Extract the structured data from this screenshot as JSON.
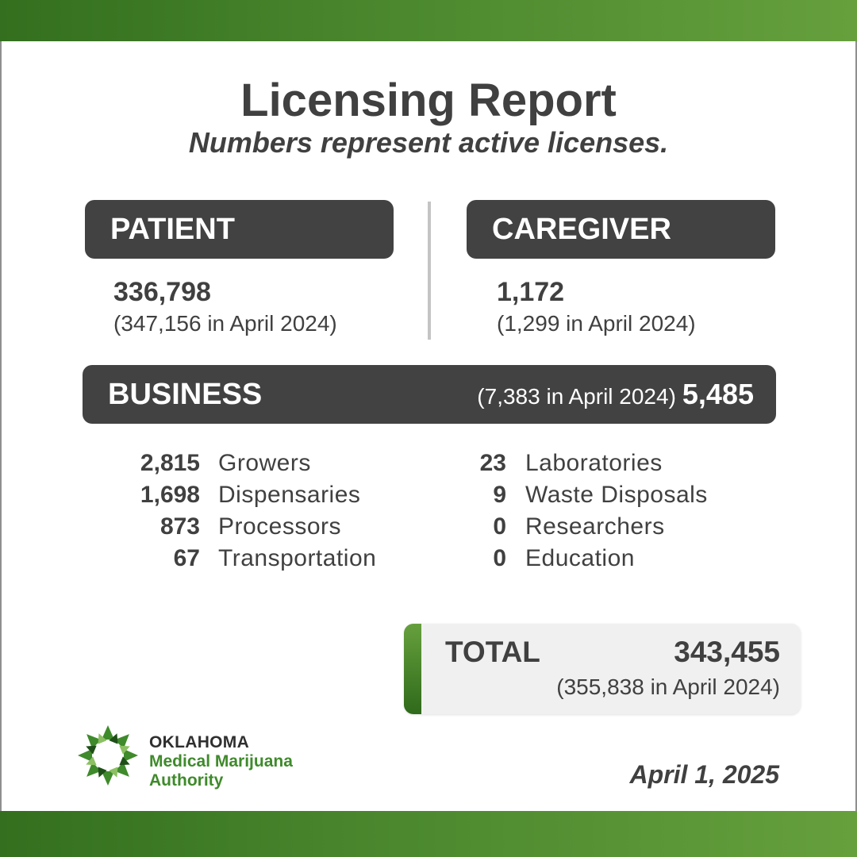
{
  "header": {
    "title": "Licensing Report",
    "subtitle": "Numbers represent active licenses."
  },
  "patient": {
    "label": "PATIENT",
    "count": "336,798",
    "prior": "(347,156 in April 2024)"
  },
  "caregiver": {
    "label": "CAREGIVER",
    "count": "1,172",
    "prior": "(1,299 in April 2024)"
  },
  "business": {
    "label": "BUSINESS",
    "prior": "(7,383 in April 2024)",
    "count": "5,485",
    "left_items": [
      {
        "count": "2,815",
        "label": "Growers"
      },
      {
        "count": "1,698",
        "label": "Dispensaries"
      },
      {
        "count": "873",
        "label": "Processors"
      },
      {
        "count": "67",
        "label": "Transportation"
      }
    ],
    "right_items": [
      {
        "count": "23",
        "label": "Laboratories"
      },
      {
        "count": "9",
        "label": "Waste Disposals"
      },
      {
        "count": "0",
        "label": "Researchers"
      },
      {
        "count": "0",
        "label": "Education"
      }
    ]
  },
  "total": {
    "label": "TOTAL",
    "count": "343,455",
    "prior": "(355,838 in April 2024)"
  },
  "footer": {
    "logo_line1": "OKLAHOMA",
    "logo_line2": "Medical Marijuana",
    "logo_line3": "Authority",
    "logo_icon": "star-logo-icon",
    "date": "April 1, 2025"
  },
  "colors": {
    "brand_green": "#4d8a2f",
    "dark_pill": "#424242",
    "text": "#404040"
  }
}
